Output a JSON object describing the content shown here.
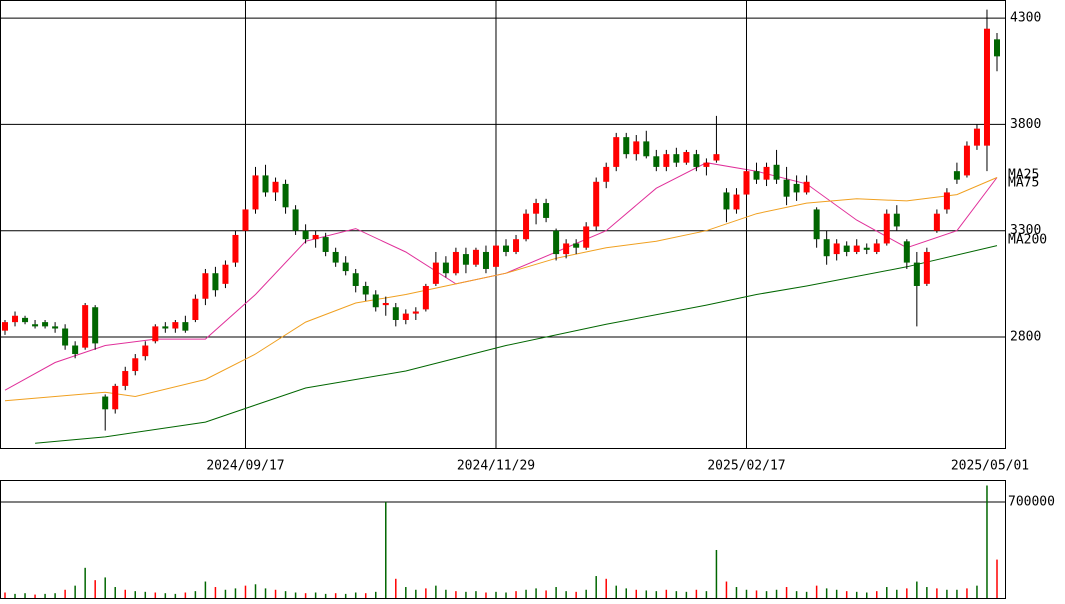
{
  "chart_data": {
    "type": "candlestick",
    "categories": [
      null,
      null,
      null,
      null,
      null,
      null,
      null,
      null,
      null,
      null,
      null,
      null,
      null,
      null,
      null,
      null,
      null,
      null,
      null,
      null,
      null,
      null,
      null,
      null,
      "2024/09/17",
      null,
      null,
      null,
      null,
      null,
      null,
      null,
      null,
      null,
      null,
      null,
      null,
      null,
      null,
      null,
      null,
      null,
      null,
      null,
      null,
      null,
      null,
      null,
      null,
      "2024/11/29",
      null,
      null,
      null,
      null,
      null,
      null,
      null,
      null,
      null,
      null,
      null,
      null,
      null,
      null,
      null,
      null,
      null,
      null,
      null,
      null,
      null,
      null,
      null,
      null,
      "2025/02/17",
      null,
      null,
      null,
      null,
      null,
      null,
      null,
      null,
      null,
      null,
      null,
      null,
      null,
      null,
      null,
      null,
      null,
      null,
      null,
      null,
      null,
      null,
      null,
      null,
      "2025/05/01"
    ],
    "candles": [
      [
        2830,
        2880,
        2810,
        2870
      ],
      [
        2870,
        2920,
        2850,
        2900
      ],
      [
        2890,
        2900,
        2860,
        2870
      ],
      [
        2860,
        2880,
        2840,
        2850
      ],
      [
        2870,
        2880,
        2840,
        2850
      ],
      [
        2850,
        2870,
        2820,
        2840
      ],
      [
        2840,
        2860,
        2740,
        2760
      ],
      [
        2760,
        2780,
        2700,
        2720
      ],
      [
        2750,
        2960,
        2740,
        2950
      ],
      [
        2940,
        2950,
        2740,
        2770
      ],
      [
        2520,
        2530,
        2360,
        2460
      ],
      [
        2460,
        2580,
        2440,
        2570
      ],
      [
        2570,
        2660,
        2550,
        2640
      ],
      [
        2640,
        2720,
        2620,
        2700
      ],
      [
        2710,
        2780,
        2690,
        2760
      ],
      [
        2780,
        2860,
        2770,
        2850
      ],
      [
        2850,
        2870,
        2820,
        2840
      ],
      [
        2840,
        2880,
        2820,
        2870
      ],
      [
        2870,
        2900,
        2820,
        2830
      ],
      [
        2880,
        3000,
        2870,
        2980
      ],
      [
        2980,
        3120,
        2950,
        3100
      ],
      [
        3100,
        3130,
        2990,
        3020
      ],
      [
        3050,
        3160,
        3030,
        3140
      ],
      [
        3150,
        3300,
        3130,
        3280
      ],
      [
        3300,
        3450,
        3260,
        3400
      ],
      [
        3400,
        3600,
        3380,
        3560
      ],
      [
        3560,
        3610,
        3460,
        3480
      ],
      [
        3480,
        3550,
        3440,
        3530
      ],
      [
        3520,
        3540,
        3380,
        3410
      ],
      [
        3400,
        3420,
        3280,
        3300
      ],
      [
        3300,
        3330,
        3240,
        3260
      ],
      [
        3260,
        3300,
        3220,
        3280
      ],
      [
        3270,
        3290,
        3180,
        3200
      ],
      [
        3200,
        3220,
        3130,
        3150
      ],
      [
        3150,
        3180,
        3090,
        3110
      ],
      [
        3100,
        3120,
        3010,
        3040
      ],
      [
        3040,
        3060,
        2970,
        3000
      ],
      [
        3000,
        3020,
        2920,
        2940
      ],
      [
        2950,
        2990,
        2900,
        2960
      ],
      [
        2940,
        2960,
        2850,
        2880
      ],
      [
        2880,
        2930,
        2860,
        2910
      ],
      [
        2910,
        2940,
        2880,
        2920
      ],
      [
        2930,
        3050,
        2920,
        3040
      ],
      [
        3050,
        3200,
        3040,
        3150
      ],
      [
        3150,
        3180,
        3080,
        3100
      ],
      [
        3100,
        3220,
        3090,
        3200
      ],
      [
        3190,
        3220,
        3100,
        3140
      ],
      [
        3140,
        3220,
        3130,
        3210
      ],
      [
        3200,
        3230,
        3100,
        3120
      ],
      [
        3130,
        3250,
        3120,
        3230
      ],
      [
        3230,
        3260,
        3180,
        3200
      ],
      [
        3200,
        3280,
        3190,
        3260
      ],
      [
        3260,
        3400,
        3250,
        3380
      ],
      [
        3380,
        3450,
        3330,
        3430
      ],
      [
        3430,
        3450,
        3340,
        3360
      ],
      [
        3300,
        3310,
        3160,
        3190
      ],
      [
        3190,
        3260,
        3170,
        3240
      ],
      [
        3240,
        3260,
        3190,
        3220
      ],
      [
        3220,
        3340,
        3210,
        3320
      ],
      [
        3320,
        3550,
        3300,
        3530
      ],
      [
        3530,
        3620,
        3500,
        3600
      ],
      [
        3600,
        3760,
        3580,
        3740
      ],
      [
        3740,
        3760,
        3640,
        3660
      ],
      [
        3660,
        3750,
        3630,
        3720
      ],
      [
        3720,
        3770,
        3640,
        3650
      ],
      [
        3650,
        3680,
        3580,
        3600
      ],
      [
        3600,
        3680,
        3580,
        3660
      ],
      [
        3660,
        3690,
        3600,
        3620
      ],
      [
        3620,
        3680,
        3610,
        3670
      ],
      [
        3660,
        3680,
        3580,
        3600
      ],
      [
        3600,
        3640,
        3560,
        3620
      ],
      [
        3630,
        3840,
        3620,
        3660
      ],
      [
        3480,
        3500,
        3340,
        3400
      ],
      [
        3400,
        3500,
        3380,
        3470
      ],
      [
        3470,
        3600,
        3460,
        3580
      ],
      [
        3580,
        3620,
        3520,
        3540
      ],
      [
        3540,
        3620,
        3510,
        3600
      ],
      [
        3610,
        3680,
        3520,
        3540
      ],
      [
        3540,
        3600,
        3420,
        3460
      ],
      [
        3520,
        3560,
        3440,
        3480
      ],
      [
        3480,
        3560,
        3470,
        3530
      ],
      [
        3400,
        3410,
        3220,
        3260
      ],
      [
        3260,
        3300,
        3140,
        3180
      ],
      [
        3190,
        3260,
        3160,
        3240
      ],
      [
        3230,
        3250,
        3180,
        3200
      ],
      [
        3200,
        3260,
        3190,
        3230
      ],
      [
        3220,
        3240,
        3190,
        3210
      ],
      [
        3200,
        3260,
        3190,
        3240
      ],
      [
        3240,
        3400,
        3230,
        3380
      ],
      [
        3380,
        3420,
        3300,
        3320
      ],
      [
        3250,
        3260,
        3120,
        3150
      ],
      [
        3150,
        3200,
        2850,
        3040
      ],
      [
        3050,
        3220,
        3040,
        3200
      ],
      [
        3300,
        3400,
        3290,
        3380
      ],
      [
        3400,
        3500,
        3380,
        3480
      ],
      [
        3580,
        3620,
        3520,
        3540
      ],
      [
        3560,
        3720,
        3550,
        3700
      ],
      [
        3700,
        3800,
        3680,
        3780
      ],
      [
        3700,
        4340,
        3580,
        4250
      ],
      [
        4200,
        4230,
        4050,
        4120
      ]
    ],
    "up_color": "#ff0000",
    "down_color": "#006600",
    "ylim": [
      2278,
      4385
    ],
    "yticks": [
      2800,
      3300,
      3800,
      4300
    ],
    "series": [
      {
        "name": "MA25",
        "color": "#e0309a",
        "x": [
          0,
          5,
          10,
          15,
          20,
          25,
          30,
          35,
          40,
          45,
          50,
          55,
          60,
          65,
          70,
          75,
          80,
          85,
          90,
          95,
          99
        ],
        "values": [
          2550,
          2680,
          2760,
          2790,
          2790,
          3000,
          3250,
          3310,
          3200,
          3050,
          3100,
          3200,
          3300,
          3500,
          3620,
          3580,
          3520,
          3350,
          3220,
          3300,
          3550
        ]
      },
      {
        "name": "MA75",
        "color": "#f0a020",
        "x": [
          0,
          10,
          13,
          20,
          25,
          30,
          35,
          40,
          45,
          50,
          55,
          60,
          65,
          70,
          75,
          80,
          85,
          90,
          95,
          99
        ],
        "values": [
          2500,
          2540,
          2520,
          2600,
          2720,
          2870,
          2960,
          3000,
          3050,
          3100,
          3170,
          3220,
          3250,
          3300,
          3380,
          3430,
          3450,
          3440,
          3470,
          3550
        ]
      },
      {
        "name": "MA200",
        "color": "#006600",
        "x": [
          3,
          10,
          20,
          25,
          30,
          40,
          50,
          60,
          70,
          75,
          80,
          90,
          99
        ],
        "values": [
          2300,
          2330,
          2400,
          2480,
          2560,
          2640,
          2760,
          2860,
          2950,
          3000,
          3040,
          3130,
          3230
        ]
      }
    ],
    "volume": {
      "values": [
        40000,
        30000,
        35000,
        25000,
        30000,
        35000,
        60000,
        90000,
        220000,
        130000,
        150000,
        80000,
        60000,
        50000,
        45000,
        40000,
        35000,
        30000,
        40000,
        50000,
        120000,
        80000,
        60000,
        70000,
        90000,
        100000,
        70000,
        60000,
        50000,
        40000,
        35000,
        40000,
        30000,
        35000,
        30000,
        40000,
        35000,
        45000,
        700000,
        140000,
        80000,
        60000,
        70000,
        90000,
        60000,
        50000,
        45000,
        50000,
        40000,
        45000,
        40000,
        50000,
        60000,
        70000,
        55000,
        80000,
        50000,
        45000,
        60000,
        160000,
        140000,
        90000,
        70000,
        60000,
        55000,
        50000,
        60000,
        50000,
        45000,
        60000,
        50000,
        350000,
        120000,
        80000,
        60000,
        55000,
        50000,
        60000,
        80000,
        50000,
        45000,
        90000,
        70000,
        60000,
        50000,
        45000,
        40000,
        50000,
        80000,
        60000,
        70000,
        120000,
        80000,
        70000,
        60000,
        60000,
        70000,
        90000,
        820000,
        280000
      ],
      "color": "#006600",
      "ylim": [
        0,
        860000
      ],
      "yticks": [
        700000
      ]
    }
  }
}
